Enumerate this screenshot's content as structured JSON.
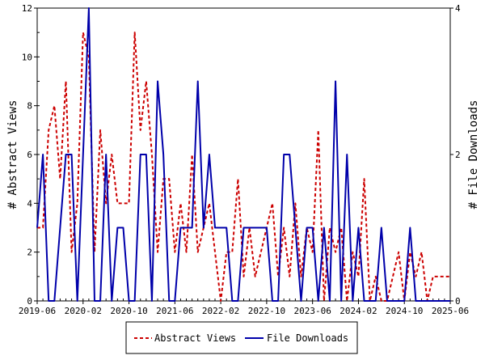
{
  "chart_data": {
    "type": "line",
    "ylabel_left": "# Abstract Views",
    "ylabel_right": "# File Downloads",
    "xlabel": "",
    "title": "",
    "ylim_left": [
      0,
      12
    ],
    "ylim_right": [
      0,
      4
    ],
    "yticks_left": [
      "0",
      "2",
      "4",
      "6",
      "8",
      "10",
      "12"
    ],
    "yticks_right": [
      "0",
      "2",
      "4"
    ],
    "xtick_labels": [
      "2019-06",
      "2020-02",
      "2020-10",
      "2021-06",
      "2022-02",
      "2022-10",
      "2023-06",
      "2024-02",
      "2024-10",
      "2025-06"
    ],
    "months": [
      "2019-06",
      "2019-07",
      "2019-08",
      "2019-09",
      "2019-10",
      "2019-11",
      "2019-12",
      "2020-01",
      "2020-02",
      "2020-03",
      "2020-04",
      "2020-05",
      "2020-06",
      "2020-07",
      "2020-08",
      "2020-09",
      "2020-10",
      "2020-11",
      "2020-12",
      "2021-01",
      "2021-02",
      "2021-03",
      "2021-04",
      "2021-05",
      "2021-06",
      "2021-07",
      "2021-08",
      "2021-09",
      "2021-10",
      "2021-11",
      "2021-12",
      "2022-01",
      "2022-02",
      "2022-03",
      "2022-04",
      "2022-05",
      "2022-06",
      "2022-07",
      "2022-08",
      "2022-09",
      "2022-10",
      "2022-11",
      "2022-12",
      "2023-01",
      "2023-02",
      "2023-03",
      "2023-04",
      "2023-05",
      "2023-06",
      "2023-07",
      "2023-08",
      "2023-09",
      "2023-10",
      "2023-11",
      "2023-12",
      "2024-01",
      "2024-02",
      "2024-03",
      "2024-04",
      "2024-05",
      "2024-06",
      "2024-07",
      "2024-08",
      "2024-09",
      "2024-10",
      "2024-11",
      "2024-12",
      "2025-01",
      "2025-02",
      "2025-03",
      "2025-04",
      "2025-05",
      "2025-06"
    ],
    "legend_position": "bottom",
    "series": [
      {
        "name": "Abstract Views",
        "axis": "left",
        "color": "#cc0000",
        "style": "dashed",
        "values": [
          3,
          3,
          7,
          8,
          5,
          9,
          2,
          4,
          11,
          10,
          2,
          7,
          4,
          6,
          4,
          4,
          4,
          11,
          7,
          9,
          6,
          2,
          5,
          5,
          2,
          4,
          2,
          6,
          2,
          3,
          4,
          2,
          0,
          2,
          2,
          5,
          1,
          3,
          1,
          2,
          3,
          4,
          1,
          3,
          1,
          4,
          1,
          3,
          2,
          7,
          0,
          3,
          2,
          3,
          0,
          2,
          1,
          5,
          0,
          1,
          0,
          0,
          1,
          2,
          0,
          2,
          1,
          2,
          0,
          1,
          1,
          1,
          1
        ],
        "values_right": []
      },
      {
        "name": "File Downloads",
        "axis": "right",
        "color": "#0000aa",
        "style": "solid",
        "values": [],
        "values_right": [
          1,
          2,
          0,
          0,
          1,
          2,
          2,
          0,
          2,
          4,
          0,
          0,
          2,
          0,
          1,
          1,
          0,
          0,
          2,
          2,
          0,
          3,
          2,
          0,
          0,
          1,
          1,
          1,
          3,
          1,
          2,
          1,
          1,
          1,
          0,
          0,
          1,
          1,
          1,
          1,
          1,
          0,
          0,
          2,
          2,
          1,
          0,
          1,
          1,
          0,
          1,
          0,
          3,
          0,
          2,
          0,
          1,
          0,
          0,
          0,
          1,
          0,
          0,
          0,
          0,
          1,
          0,
          0,
          0,
          0,
          0,
          0,
          0
        ]
      }
    ]
  }
}
